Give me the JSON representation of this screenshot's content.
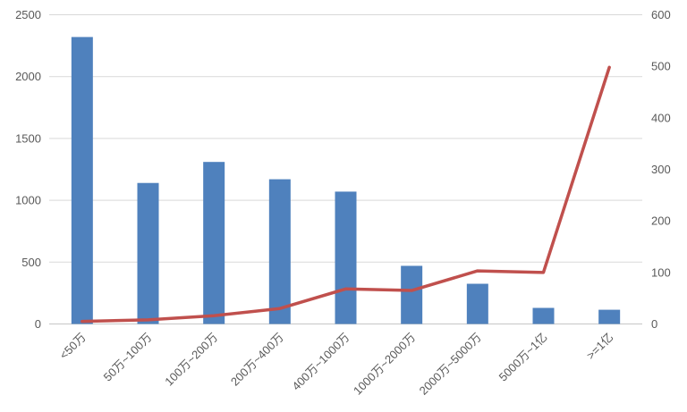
{
  "chart_data": {
    "type": "bar",
    "combo": "bar+line dual axis",
    "categories": [
      "<50万",
      "50万~100万",
      "100万~200万",
      "200万~400万",
      "400万~1000万",
      "1000万~2000万",
      "2000万~5000万",
      "5000万~1亿",
      ">=1亿"
    ],
    "series": [
      {
        "name": "bars-left-axis",
        "type": "bar",
        "axis": "left",
        "color": "#4F81BD",
        "values": [
          2320,
          1140,
          1310,
          1170,
          1070,
          470,
          325,
          130,
          115
        ]
      },
      {
        "name": "line-right-axis",
        "type": "line",
        "axis": "right",
        "color": "#C0504D",
        "values": [
          5,
          8,
          16,
          30,
          68,
          65,
          103,
          100,
          498
        ]
      }
    ],
    "left_axis": {
      "min": 0,
      "max": 2500,
      "step": 500,
      "tick_labels": [
        "0",
        "500",
        "1000",
        "1500",
        "2000",
        "2500"
      ]
    },
    "right_axis": {
      "min": 0,
      "max": 600,
      "step": 100,
      "tick_labels": [
        "0",
        "100",
        "200",
        "300",
        "400",
        "500",
        "600"
      ]
    },
    "grid": true,
    "legend": "none",
    "x_label_rotation_deg": -45
  },
  "style": {
    "bar_color": "#4F81BD",
    "line_color": "#C0504D",
    "grid_color": "#D9D9D9",
    "axis_line_color": "#C6C6C6",
    "label_color": "#595959",
    "background": "#FFFFFF"
  }
}
